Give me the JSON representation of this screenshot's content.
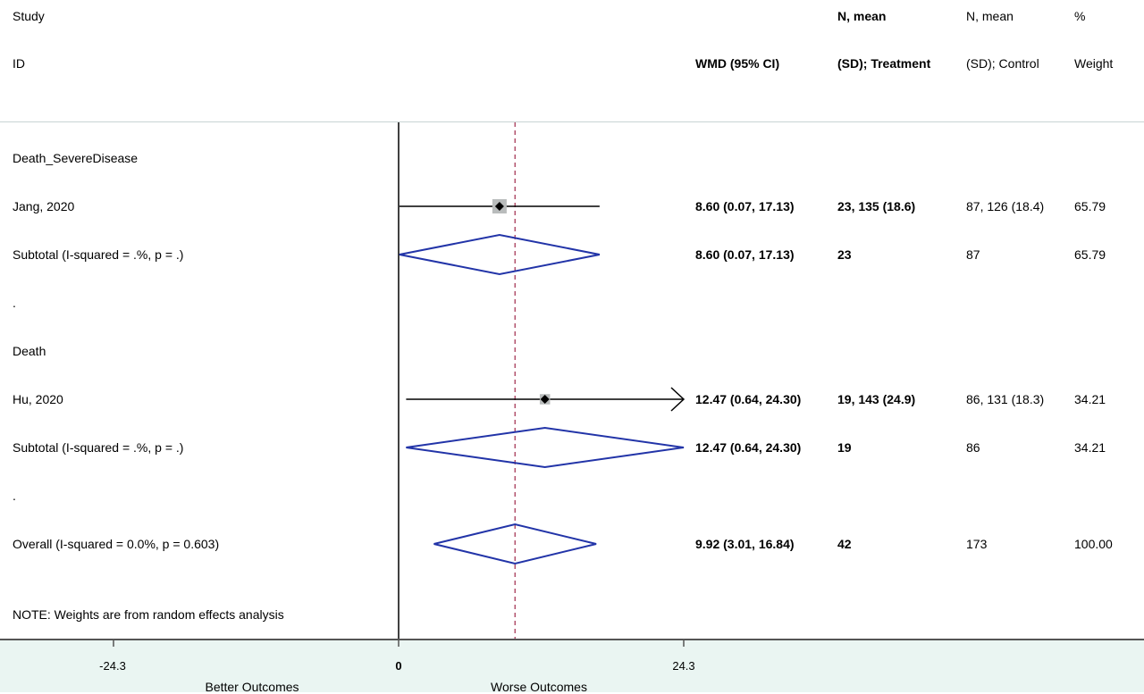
{
  "chart_data": {
    "type": "forest",
    "headers": {
      "study": "Study",
      "id": "ID",
      "effect": "WMD (95% CI)",
      "treatment_l1": "N, mean",
      "treatment_l2": "(SD); Treatment",
      "control_l1": "N, mean",
      "control_l2": "(SD); Control",
      "weight_l1": "%",
      "weight_l2": "Weight"
    },
    "rows": [
      {
        "kind": "group",
        "label": "Death_SevereDisease"
      },
      {
        "kind": "study",
        "label": "Jang, 2020",
        "est": 8.6,
        "lo": 0.07,
        "hi": 17.13,
        "ci": "8.60 (0.07, 17.13)",
        "treatment": "23, 135 (18.6)",
        "control": "87, 126 (18.4)",
        "weight": "65.79",
        "weight_value": 65.79
      },
      {
        "kind": "subtotal",
        "label": "Subtotal  (I-squared = .%, p = .)",
        "est": 8.6,
        "lo": 0.07,
        "hi": 17.13,
        "ci": "8.60 (0.07, 17.13)",
        "treatment": "23",
        "control": "87",
        "weight": "65.79"
      },
      {
        "kind": "spacer",
        "label": "."
      },
      {
        "kind": "group",
        "label": "Death"
      },
      {
        "kind": "study",
        "label": "Hu, 2020",
        "est": 12.47,
        "lo": 0.64,
        "hi": 24.3,
        "ci": "12.47 (0.64, 24.30)",
        "treatment": "19, 143 (24.9)",
        "control": "86, 131 (18.3)",
        "weight": "34.21",
        "weight_value": 34.21,
        "arrow_right": true
      },
      {
        "kind": "subtotal",
        "label": "Subtotal  (I-squared = .%, p = .)",
        "est": 12.47,
        "lo": 0.64,
        "hi": 24.3,
        "ci": "12.47 (0.64, 24.30)",
        "treatment": "19",
        "control": "86",
        "weight": "34.21"
      },
      {
        "kind": "spacer",
        "label": "."
      },
      {
        "kind": "overall",
        "label": "Overall  (I-squared = 0.0%, p = 0.603)",
        "est": 9.92,
        "lo": 3.01,
        "hi": 16.84,
        "ci": "9.92 (3.01, 16.84)",
        "treatment": "42",
        "control": "173",
        "weight": "100.00"
      }
    ],
    "note": "NOTE: Weights are from random effects analysis",
    "x_ticks": [
      -24.3,
      0,
      24.3
    ],
    "x_tick_labels": [
      "-24.3",
      "0",
      "24.3"
    ],
    "xlim": [
      -24.3,
      24.3
    ],
    "null_line": 0,
    "overall_line": 9.92,
    "xlabel_left": "Better Outcomes",
    "xlabel_right": "Worse Outcomes"
  },
  "colors": {
    "diamond": "#2234a8",
    "overall_line": "#a0284a",
    "weight_box": "#b9bcbc",
    "axis_band": "#eaf5f2",
    "text": "#000000"
  }
}
